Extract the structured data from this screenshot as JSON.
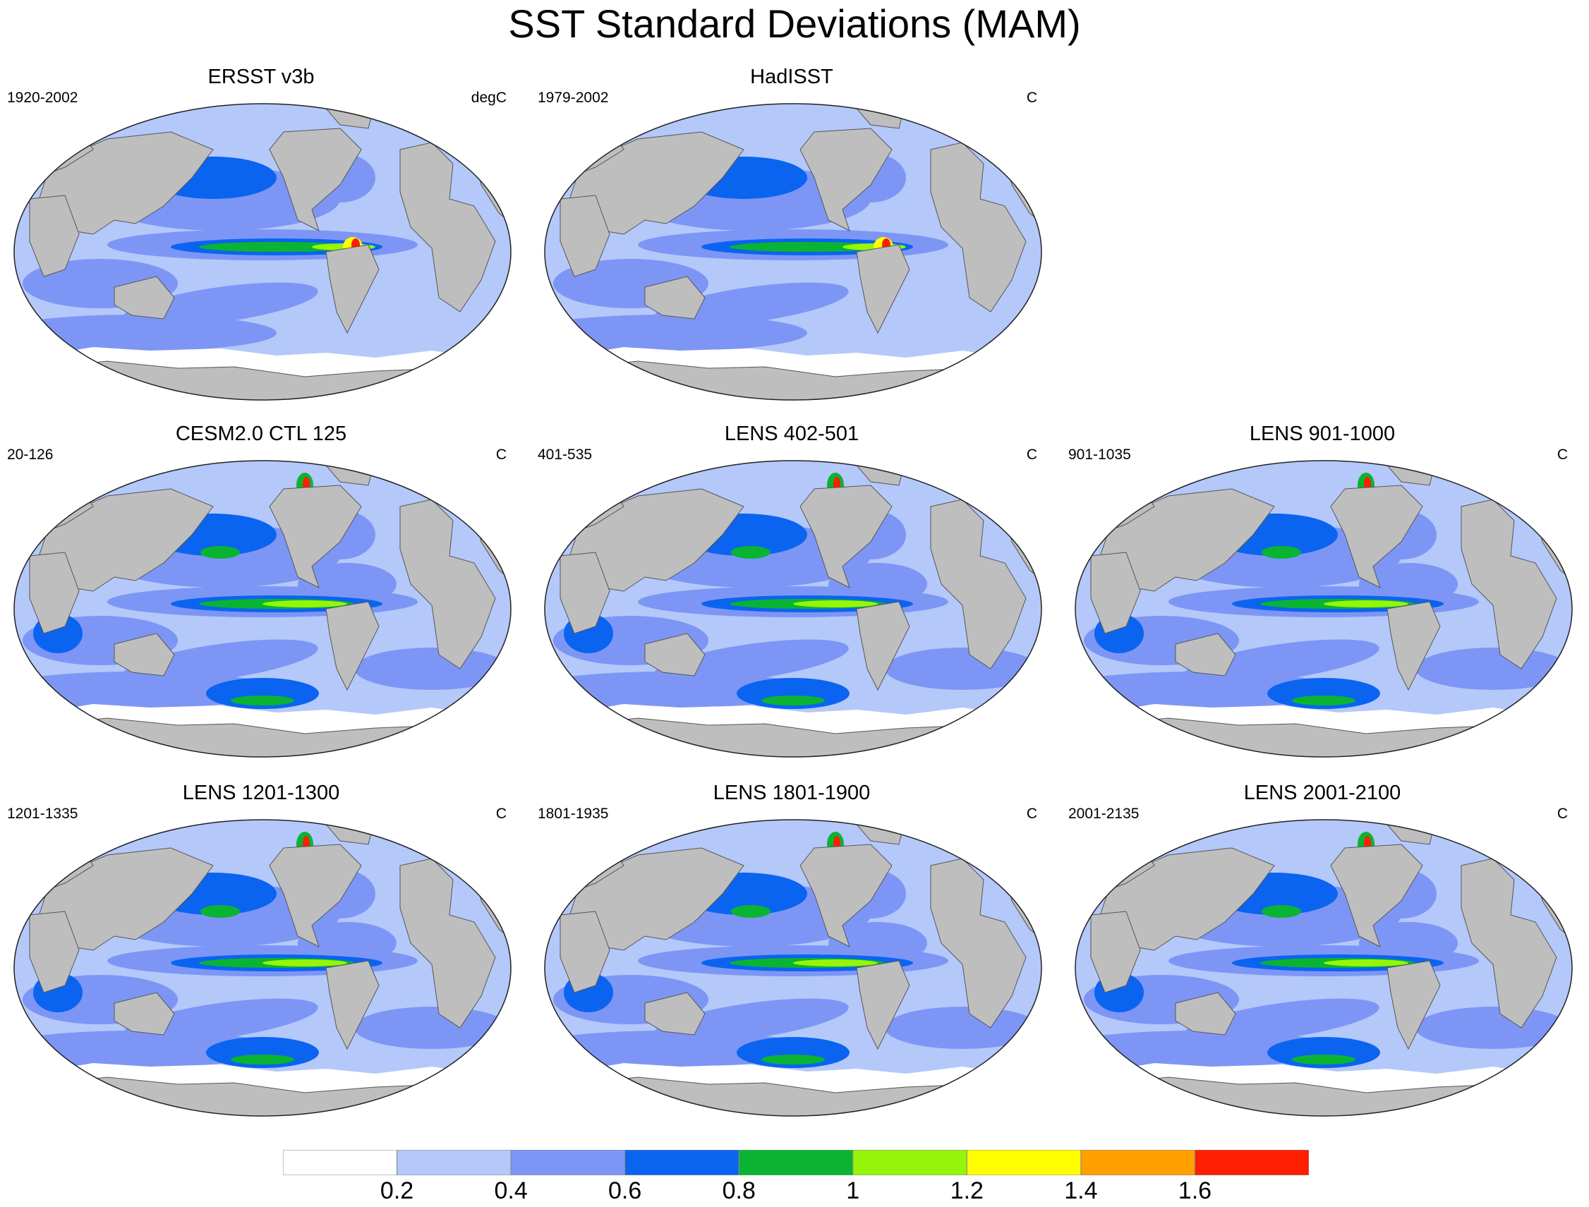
{
  "title": "SST Standard Deviations (MAM)",
  "panels": [
    {
      "title": "ERSST v3b",
      "range": "1920-2002",
      "units": "degC",
      "variant": "obs1"
    },
    {
      "title": "HadISST",
      "range": "1979-2002",
      "units": "C",
      "variant": "obs2"
    },
    {
      "title": "CESM2.0 CTL 125",
      "range": "20-126",
      "units": "C",
      "variant": "model"
    },
    {
      "title": "LENS 402-501",
      "range": "401-535",
      "units": "C",
      "variant": "model"
    },
    {
      "title": "LENS 901-1000",
      "range": "901-1035",
      "units": "C",
      "variant": "model"
    },
    {
      "title": "LENS 1201-1300",
      "range": "1201-1335",
      "units": "C",
      "variant": "model"
    },
    {
      "title": "LENS 1801-1900",
      "range": "1801-1935",
      "units": "C",
      "variant": "model"
    },
    {
      "title": "LENS 2001-2100",
      "range": "2001-2135",
      "units": "C",
      "variant": "model"
    }
  ],
  "colorbar": {
    "colors": [
      "#ffffff",
      "#b4c8fa",
      "#7d96f5",
      "#0a64f0",
      "#0ab432",
      "#96f50a",
      "#ffff00",
      "#ffa000",
      "#ff1e00"
    ],
    "labels": [
      "0.2",
      "0.4",
      "0.6",
      "0.8",
      "1",
      "1.2",
      "1.4",
      "1.6"
    ]
  },
  "land_color": "#bebebe"
}
